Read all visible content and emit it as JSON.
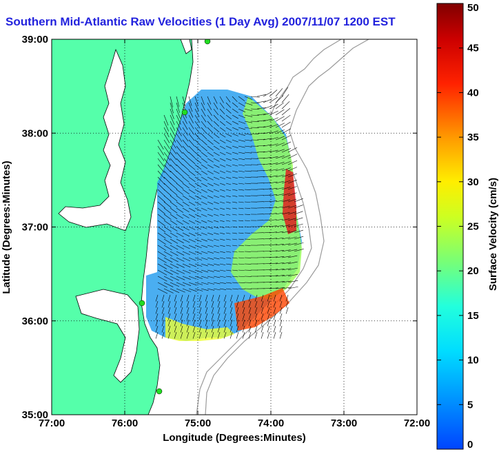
{
  "title": "Southern Mid-Atlantic Raw Velocities (1 Day Avg) 2007/11/07 1200 EST",
  "map": {
    "xlabel": "Longitude (Degrees:Minutes)",
    "ylabel": "Latitude (Degrees:Minutes)",
    "x_ticks": [
      "77:00",
      "76:00",
      "75:00",
      "74:00",
      "73:00",
      "72:00"
    ],
    "y_ticks": [
      "39:00",
      "38:00",
      "37:00",
      "36:00",
      "35:00"
    ],
    "lon_range": [
      -77,
      -72
    ],
    "lat_range": [
      35,
      39
    ],
    "grid": "dotted",
    "land_color": "#55ffaa",
    "station_color": "#22dd22"
  },
  "colorbar": {
    "label": "Surface Velocity (cm/s)",
    "ticks": [
      "0",
      "5",
      "10",
      "15",
      "20",
      "25",
      "30",
      "35",
      "40",
      "45",
      "50"
    ],
    "range": [
      0,
      50
    ]
  }
}
